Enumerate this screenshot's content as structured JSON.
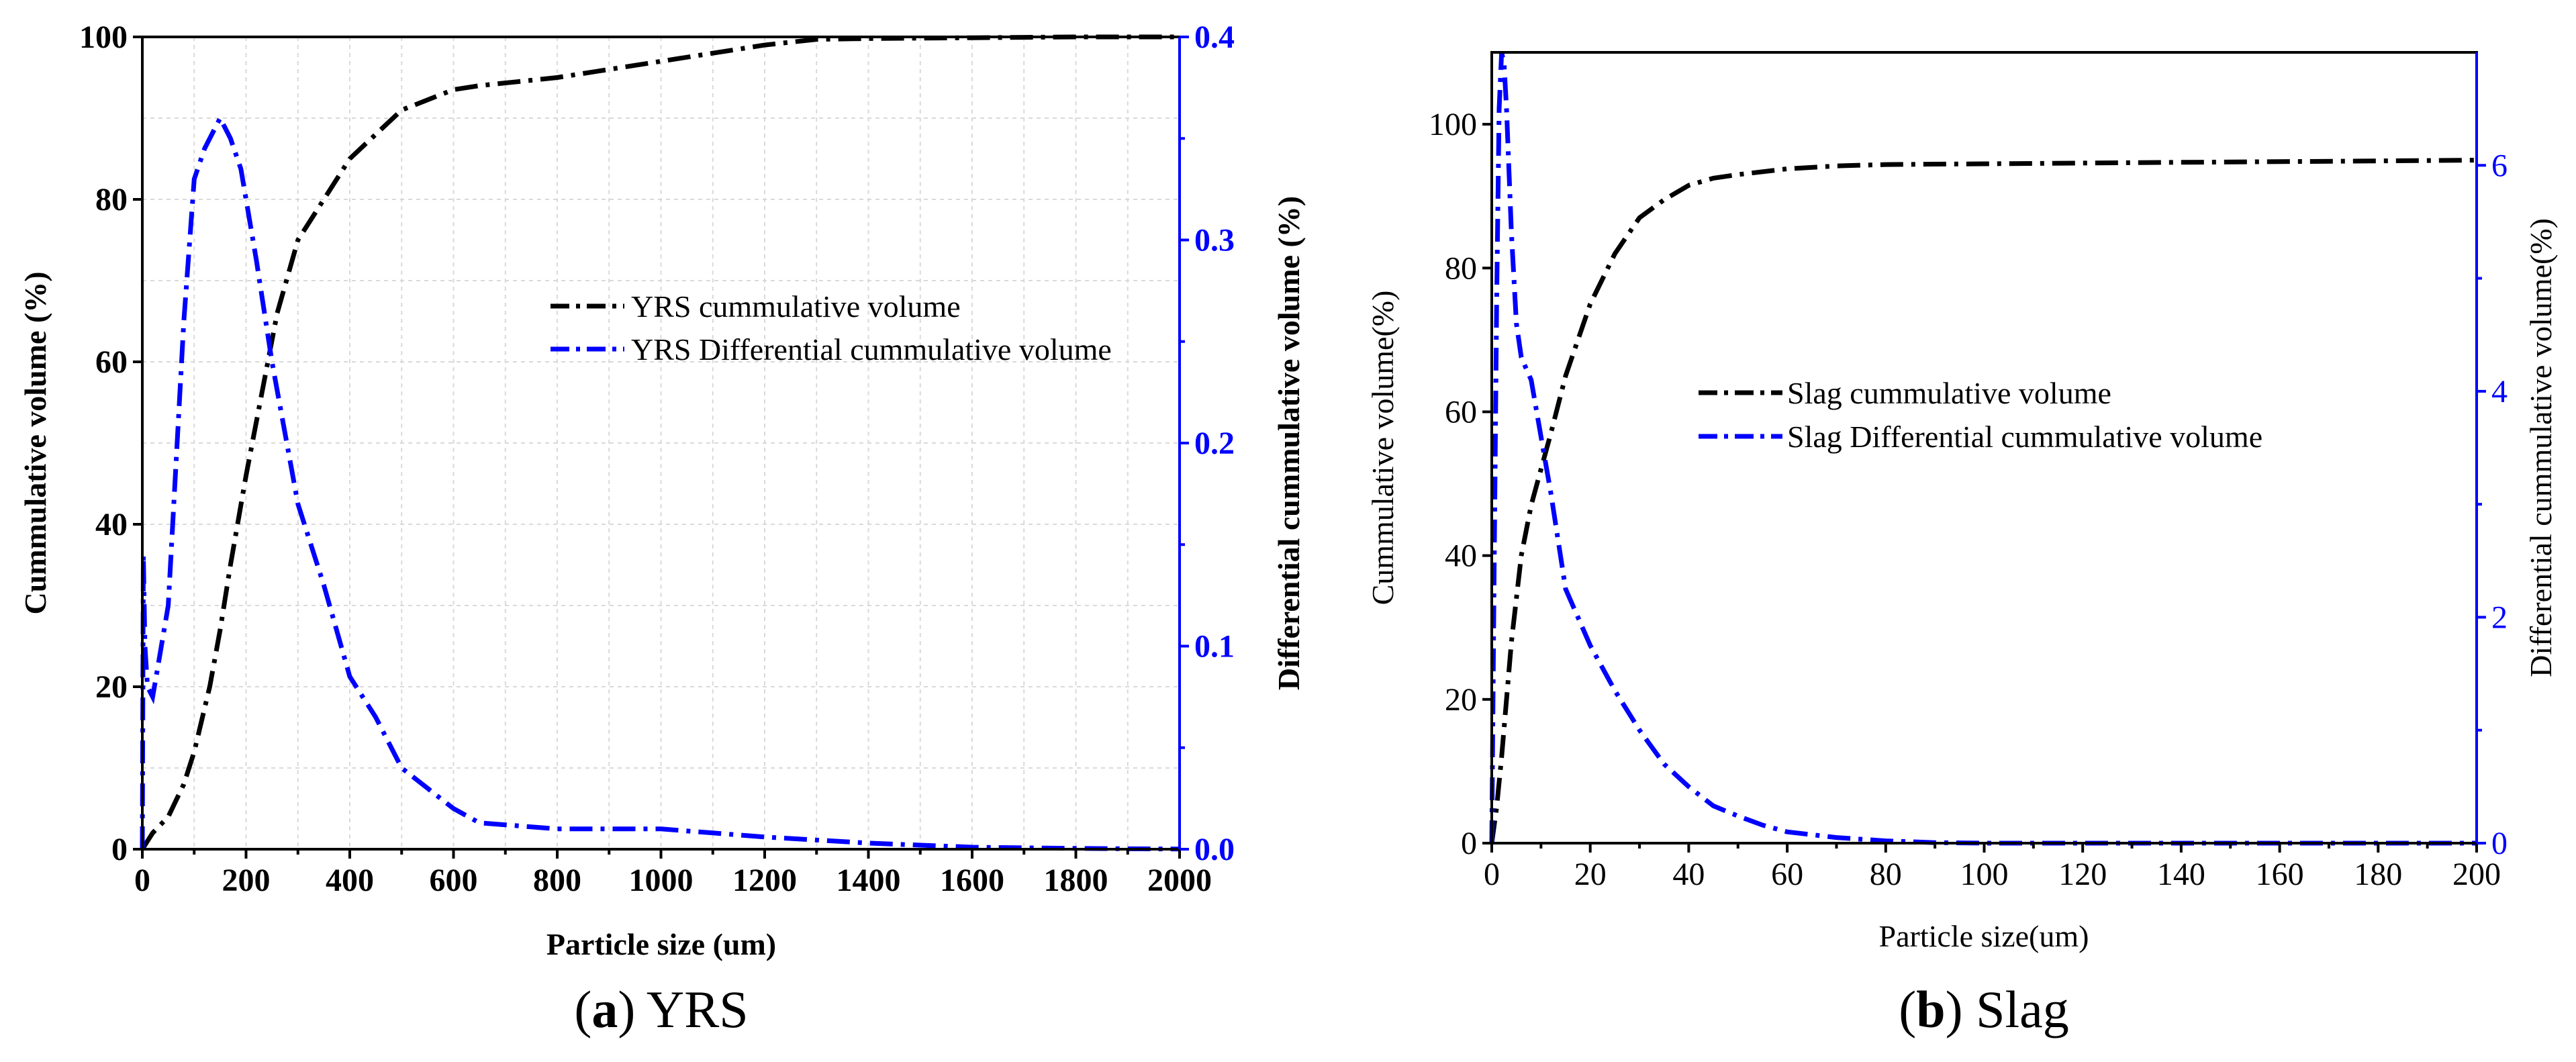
{
  "chart_data": [
    {
      "type": "line",
      "panel": "a",
      "caption_letter": "a",
      "caption_text": "YRS",
      "xlabel": "Particle size (um)",
      "ylabel_left": "Cummulative volume (%)",
      "ylabel_right": "Differential cummulative volume (%)",
      "xlim": [
        0,
        2000
      ],
      "ylim_left": [
        0,
        100
      ],
      "ylim_right": [
        0,
        0.4
      ],
      "xticks": [
        "0",
        "200",
        "400",
        "600",
        "800",
        "1000",
        "1200",
        "1400",
        "1600",
        "1800",
        "2000"
      ],
      "yticks_left": [
        "0",
        "20",
        "40",
        "60",
        "80",
        "100"
      ],
      "yticks_right": [
        "0.0",
        "0.1",
        "0.2",
        "0.3",
        "0.4"
      ],
      "grid": true,
      "legend_location": "center-right",
      "series": [
        {
          "name": "YRS cummulative volume",
          "axis": "left",
          "color": "#000000",
          "x": [
            0,
            20,
            50,
            80,
            100,
            130,
            150,
            170,
            200,
            230,
            260,
            300,
            350,
            400,
            450,
            500,
            600,
            650,
            800,
            900,
            1000,
            1100,
            1200,
            1300,
            1400,
            1600,
            1800,
            2000
          ],
          "y": [
            0,
            2,
            4,
            8,
            12,
            20,
            27,
            35,
            46,
            56,
            66,
            75,
            80,
            85,
            88,
            91,
            93.5,
            94,
            95,
            96,
            97,
            98,
            99,
            99.7,
            99.8,
            99.9,
            100,
            100
          ]
        },
        {
          "name": "YRS Differential cummulative volume",
          "axis": "right",
          "color": "#0000ff",
          "x": [
            0,
            2,
            5,
            10,
            20,
            30,
            50,
            80,
            100,
            120,
            150,
            170,
            190,
            220,
            250,
            300,
            350,
            400,
            450,
            500,
            550,
            600,
            650,
            700,
            800,
            900,
            1000,
            1100,
            1200,
            1400,
            1500,
            1600,
            1700,
            1800,
            1900,
            2000
          ],
          "y": [
            0.0,
            0.145,
            0.1,
            0.08,
            0.075,
            0.09,
            0.12,
            0.26,
            0.33,
            0.345,
            0.36,
            0.35,
            0.335,
            0.29,
            0.24,
            0.17,
            0.13,
            0.085,
            0.065,
            0.04,
            0.03,
            0.02,
            0.013,
            0.012,
            0.01,
            0.01,
            0.01,
            0.008,
            0.006,
            0.003,
            0.002,
            0.001,
            0.0007,
            0.0004,
            0.0002,
            0.0001
          ]
        }
      ]
    },
    {
      "type": "line",
      "panel": "b",
      "caption_letter": "b",
      "caption_text": "Slag",
      "xlabel": "Particle size(um)",
      "ylabel_left": "Cummulative volume(%)",
      "ylabel_right": "Differential cummulative volume(%)",
      "xlim": [
        0,
        200
      ],
      "ylim_left": [
        0,
        110
      ],
      "ylim_right": [
        0,
        7.0
      ],
      "xticks": [
        "0",
        "20",
        "40",
        "60",
        "80",
        "100",
        "120",
        "140",
        "160",
        "180",
        "200"
      ],
      "yticks_left": [
        "0",
        "20",
        "40",
        "60",
        "80",
        "100"
      ],
      "yticks_right": [
        "0",
        "2",
        "4",
        "6"
      ],
      "grid": false,
      "legend_location": "center-right",
      "series": [
        {
          "name": "Slag cummulative volume",
          "axis": "left",
          "color": "#000000",
          "x": [
            0,
            1,
            2,
            4,
            6,
            8,
            10,
            12,
            15,
            20,
            25,
            30,
            35,
            40,
            45,
            50,
            60,
            70,
            80,
            100,
            120,
            140,
            160,
            180,
            200
          ],
          "y": [
            0,
            5,
            12,
            28,
            40,
            47,
            52,
            57,
            65,
            75,
            82,
            87,
            89.5,
            91.5,
            92.5,
            93,
            93.8,
            94.2,
            94.4,
            94.5,
            94.6,
            94.7,
            94.8,
            94.9,
            95.0
          ]
        },
        {
          "name": "Slag Differential cummulative volume",
          "axis": "right",
          "color": "#0000ff",
          "x": [
            0,
            0.5,
            1,
            1.5,
            2,
            2.5,
            3,
            4,
            5,
            6,
            7,
            8,
            10,
            12,
            15,
            18,
            20,
            25,
            30,
            35,
            40,
            45,
            50,
            55,
            60,
            70,
            80,
            90,
            100,
            120,
            140,
            160,
            180,
            200
          ],
          "y": [
            0,
            2.5,
            4.8,
            6.5,
            7.0,
            6.9,
            6.5,
            5.4,
            4.6,
            4.3,
            4.2,
            4.1,
            3.6,
            3.1,
            2.25,
            1.95,
            1.75,
            1.35,
            1.0,
            0.7,
            0.5,
            0.33,
            0.24,
            0.16,
            0.1,
            0.05,
            0.02,
            0.005,
            0,
            0,
            0,
            0,
            0,
            0
          ]
        }
      ]
    }
  ]
}
